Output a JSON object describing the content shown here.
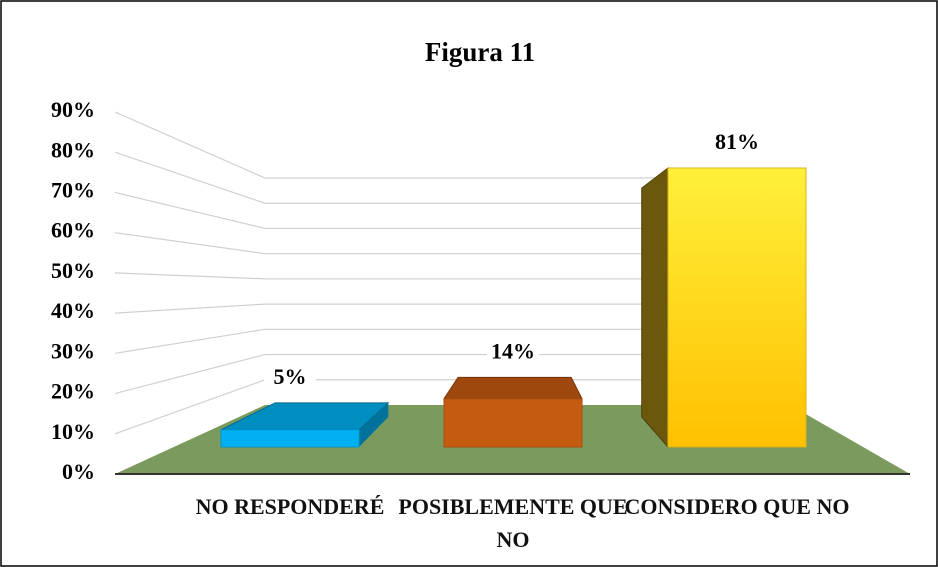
{
  "chart_data": {
    "type": "bar3d",
    "title": "Figura 11",
    "categories": [
      "NO RESPONDERÉ",
      "POSIBLEMENTE QUE NO",
      "CONSIDERO QUE NO"
    ],
    "values": [
      5,
      14,
      81
    ],
    "value_labels": [
      "5%",
      "14%",
      "81%"
    ],
    "colors": [
      "#00b0f0",
      "#c55a11",
      "#ffd21f"
    ],
    "ylim": [
      0,
      90
    ],
    "yticks": [
      {
        "value": 0,
        "label": "0%"
      },
      {
        "value": 10,
        "label": "10%"
      },
      {
        "value": 20,
        "label": "20%"
      },
      {
        "value": 30,
        "label": "30%"
      },
      {
        "value": 40,
        "label": "40%"
      },
      {
        "value": 50,
        "label": "50%"
      },
      {
        "value": 60,
        "label": "60%"
      },
      {
        "value": 70,
        "label": "70%"
      },
      {
        "value": 80,
        "label": "80%"
      },
      {
        "value": 90,
        "label": "90%"
      }
    ],
    "grid": true
  }
}
